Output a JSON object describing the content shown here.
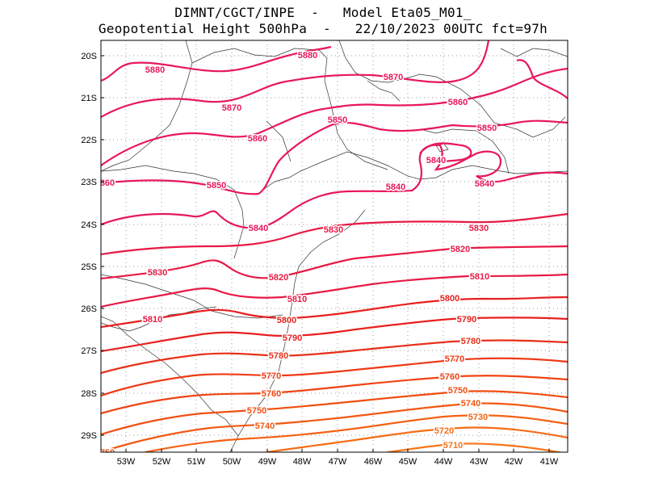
{
  "header": {
    "line1": "DIMNT/CGCT/INPE  -   Model Eta05_M01_",
    "line2": "Geopotential Height 500hPa  -   22/10/2023 00UTC fct=97h"
  },
  "axes": {
    "lat_labels": [
      "20S",
      "21S",
      "22S",
      "23S",
      "24S",
      "25S",
      "26S",
      "27S",
      "28S",
      "29S"
    ],
    "lon_labels": [
      "53W",
      "52W",
      "51W",
      "50W",
      "49W",
      "48W",
      "47W",
      "46W",
      "45W",
      "44W",
      "43W",
      "42W",
      "41W"
    ]
  },
  "contour_labels": [
    {
      "text": "5880",
      "color": "#e8185a"
    },
    {
      "text": "5880",
      "color": "#e8185a"
    },
    {
      "text": "5870",
      "color": "#e8185a"
    },
    {
      "text": "5870",
      "color": "#e8185a"
    },
    {
      "text": "5860",
      "color": "#e8185a"
    },
    {
      "text": "5860",
      "color": "#e8185a"
    },
    {
      "text": "5850",
      "color": "#e8185a"
    },
    {
      "text": "5850",
      "color": "#e8185a"
    },
    {
      "text": "5850",
      "color": "#e8185a"
    },
    {
      "text": "5840",
      "color": "#e8185a"
    },
    {
      "text": "5840",
      "color": "#e8185a"
    },
    {
      "text": "5840",
      "color": "#e8185a"
    },
    {
      "text": "5840",
      "color": "#e8185a"
    },
    {
      "text": "860",
      "color": "#e8185a"
    },
    {
      "text": "5830",
      "color": "#e81a45"
    },
    {
      "text": "5830",
      "color": "#e81a45"
    },
    {
      "text": "5830",
      "color": "#e81a45"
    },
    {
      "text": "5820",
      "color": "#e81a45"
    },
    {
      "text": "5820",
      "color": "#e81a45"
    },
    {
      "text": "5810",
      "color": "#e81a45"
    },
    {
      "text": "5810",
      "color": "#e81a45"
    },
    {
      "text": "5810",
      "color": "#e81a45"
    },
    {
      "text": "5800",
      "color": "#e8201f"
    },
    {
      "text": "5800",
      "color": "#e8201f"
    },
    {
      "text": "5790",
      "color": "#e8201f"
    },
    {
      "text": "5790",
      "color": "#e8201f"
    },
    {
      "text": "5780",
      "color": "#e8301a"
    },
    {
      "text": "5780",
      "color": "#e8301a"
    },
    {
      "text": "5770",
      "color": "#ee3a16"
    },
    {
      "text": "5770",
      "color": "#ee3a16"
    },
    {
      "text": "5760",
      "color": "#f04414"
    },
    {
      "text": "5760",
      "color": "#f04414"
    },
    {
      "text": "5750",
      "color": "#f04e12"
    },
    {
      "text": "5750",
      "color": "#f04e12"
    },
    {
      "text": "5740",
      "color": "#f25812"
    },
    {
      "text": "5740",
      "color": "#f25812"
    },
    {
      "text": "5730",
      "color": "#f46214"
    },
    {
      "text": "5720",
      "color": "#f66c16"
    },
    {
      "text": "5710",
      "color": "#f87418"
    },
    {
      "text": "750",
      "color": "#f04e12"
    }
  ]
}
